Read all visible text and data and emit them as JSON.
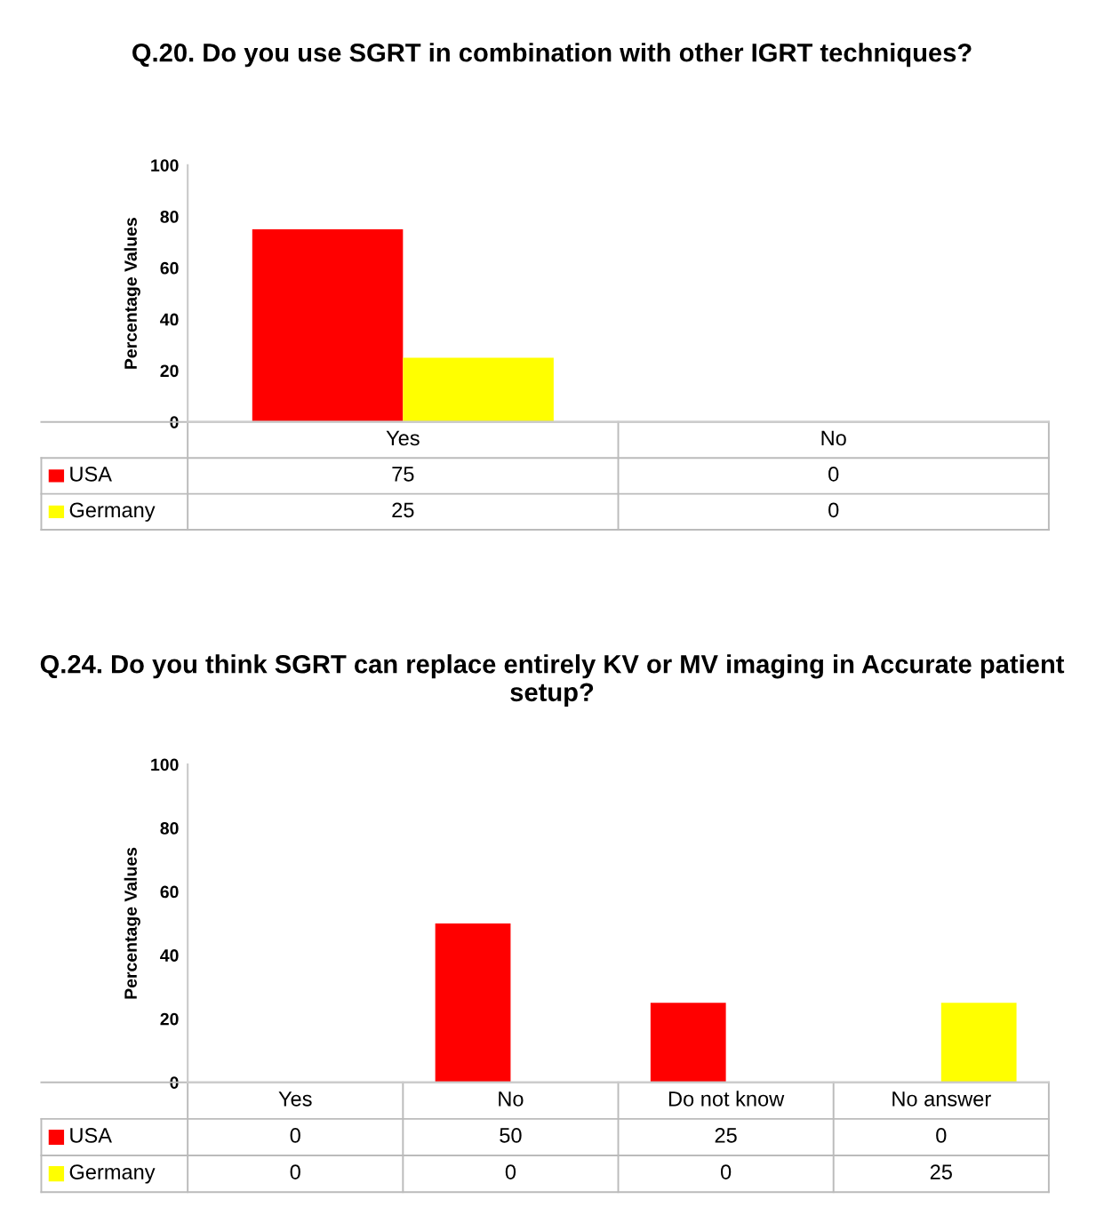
{
  "chart_data": [
    {
      "type": "bar",
      "title": "Q.20. Do you use SGRT in combination with other IGRT techniques?",
      "ylabel": "Percentage Values",
      "categories": [
        "Yes",
        "No"
      ],
      "series": [
        {
          "name": "USA",
          "color": "#ff0000",
          "values": [
            75,
            0
          ]
        },
        {
          "name": "Germany",
          "color": "#ffff00",
          "values": [
            25,
            0
          ]
        }
      ],
      "ylim": [
        0,
        100
      ],
      "yticks": [
        0,
        20,
        40,
        60,
        80,
        100
      ],
      "data_labels": true,
      "grid": false,
      "legend": "bottom left"
    },
    {
      "type": "bar",
      "title": "Q.24. Do you think SGRT can replace entirely KV or MV imaging in Accurate patient setup?",
      "ylabel": "Percentage Values",
      "categories": [
        "Yes",
        "No",
        "Do not know",
        "No answer"
      ],
      "series": [
        {
          "name": "USA",
          "color": "#ff0000",
          "values": [
            0,
            50,
            25,
            0
          ]
        },
        {
          "name": "Germany",
          "color": "#ffff00",
          "values": [
            0,
            0,
            0,
            25
          ]
        }
      ],
      "ylim": [
        0,
        100
      ],
      "yticks": [
        0,
        20,
        40,
        60,
        80,
        100
      ],
      "data_labels": true,
      "grid": false,
      "legend": "bottom left"
    }
  ]
}
